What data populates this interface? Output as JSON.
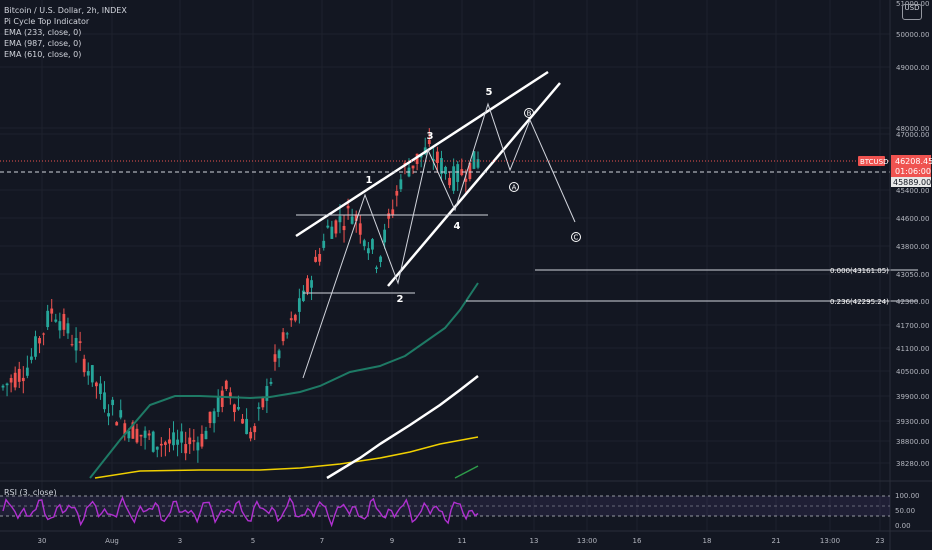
{
  "legend": {
    "title": "Bitcoin / U.S. Dollar, 2h, INDEX",
    "lines": [
      "Pi Cycle Top Indicator",
      "EMA (233, close, 0)",
      "EMA (987, close, 0)",
      "EMA (610, close, 0)"
    ]
  },
  "currency": "USD",
  "price_axis": {
    "ticks": [
      "51000.00",
      "50000.00",
      "49000.00",
      "48000.00",
      "47000.00",
      "45400.00",
      "44600.00",
      "43800.00",
      "43050.00",
      "42300.00",
      "41700.00",
      "41100.00",
      "40500.00",
      "39900.00",
      "39300.00",
      "38800.00",
      "38280.00"
    ],
    "top_clip": "51000.00"
  },
  "price_tags": {
    "symbol": "BTCUSD",
    "last": "46208.45",
    "countdown": "01:06:00",
    "crosshair": "45889.00"
  },
  "fib_labels": [
    "0.000(43161.05)",
    "0.236(42295.24)"
  ],
  "wave_labels": [
    "1",
    "2",
    "3",
    "4",
    "5",
    "A",
    "B",
    "C"
  ],
  "rsi": {
    "label": "RSI (3, close)",
    "ticks": [
      "100.00",
      "50.00",
      "0.00"
    ]
  },
  "time_axis": {
    "ticks": [
      "30",
      "Aug",
      "3",
      "5",
      "7",
      "9",
      "11",
      "13",
      "13:00",
      "16",
      "18",
      "21",
      "13:00",
      "23"
    ]
  },
  "colors": {
    "background": "#131722",
    "up": "#26a69a",
    "down": "#ef5350",
    "ema_233": "#1e7a65",
    "ema_987": "#f0d000",
    "pi_cycle": "#ffffff",
    "rsi": "#9c27b0",
    "price_tag": "#ef5350"
  },
  "chart_data": {
    "type": "candlestick",
    "timeframe": "2h",
    "x": [
      "Jul 30",
      "Aug 1",
      "Aug 3",
      "Aug 5",
      "Aug 7",
      "Aug 9",
      "Aug 11",
      "Aug 13"
    ],
    "price_axis_range": [
      38000,
      51500
    ],
    "approx_close_path": [
      39900,
      40500,
      42100,
      41000,
      39600,
      38800,
      38400,
      38300,
      38500,
      39900,
      38500,
      40800,
      42300,
      44300,
      44800,
      43400,
      45900,
      46500,
      45700,
      46200
    ],
    "last_price": 46208.45,
    "ema_233_approx": [
      38300,
      39200,
      39900,
      39850,
      39500,
      39900,
      40500,
      41200,
      42500,
      43200
    ],
    "ema_987_approx": [
      38200,
      38300,
      38350,
      38450,
      38600,
      38900
    ]
  }
}
